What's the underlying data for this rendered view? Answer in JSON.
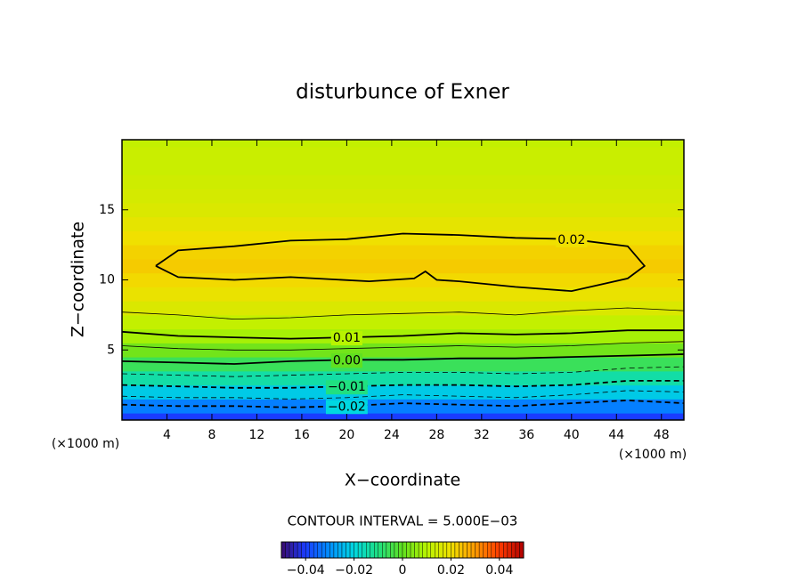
{
  "chart_data": {
    "type": "contour",
    "title": "disturbunce of Exner",
    "xlabel": "X−coordinate",
    "ylabel": "Z−coordinate",
    "y_unit": "(×1000 m)",
    "x_unit": "(×1000 m)",
    "xlim": [
      0,
      50
    ],
    "ylim": [
      0,
      20
    ],
    "xticks": [
      4,
      8,
      12,
      16,
      20,
      24,
      28,
      32,
      36,
      40,
      44,
      48
    ],
    "yticks": [
      5,
      10,
      15
    ],
    "field": {
      "z": [
        0,
        1,
        2,
        3,
        4,
        5,
        6,
        7,
        8,
        9,
        10,
        11,
        12,
        13,
        14,
        15,
        16,
        17,
        18,
        19,
        20
      ],
      "values": [
        -0.04,
        -0.032,
        -0.022,
        -0.014,
        -0.006,
        0.002,
        0.008,
        0.012,
        0.016,
        0.019,
        0.021,
        0.023,
        0.022,
        0.02,
        0.018,
        0.016,
        0.015,
        0.014,
        0.013,
        0.013,
        0.012
      ]
    },
    "contours": [
      {
        "level": 0.02,
        "label": "0.02",
        "x": [
          3,
          5,
          10,
          15,
          20,
          25,
          30,
          35,
          40,
          45,
          46.5,
          45,
          40,
          35,
          30,
          28,
          27,
          26,
          22,
          15,
          10,
          5,
          3
        ],
        "y": [
          11,
          12.1,
          12.4,
          12.8,
          12.9,
          13.3,
          13.2,
          13.0,
          12.9,
          12.4,
          11,
          10.1,
          9.2,
          9.5,
          9.9,
          10.0,
          10.6,
          10.1,
          9.9,
          10.2,
          10.0,
          10.2,
          11
        ]
      },
      {
        "level": 0.015,
        "x": [
          0,
          5,
          10,
          15,
          20,
          25,
          30,
          35,
          40,
          45,
          50
        ],
        "y": [
          7.7,
          7.5,
          7.2,
          7.3,
          7.5,
          7.6,
          7.7,
          7.5,
          7.8,
          8.0,
          7.8
        ]
      },
      {
        "level": 0.01,
        "label": "0.01",
        "x": [
          0,
          5,
          10,
          15,
          20,
          25,
          30,
          35,
          40,
          45,
          50
        ],
        "y": [
          6.3,
          6.0,
          5.9,
          5.8,
          5.9,
          6.0,
          6.2,
          6.1,
          6.2,
          6.4,
          6.4
        ]
      },
      {
        "level": 0.005,
        "x": [
          0,
          5,
          10,
          15,
          20,
          25,
          30,
          35,
          40,
          45,
          50
        ],
        "y": [
          5.3,
          5.1,
          5.0,
          5.0,
          5.1,
          5.2,
          5.3,
          5.2,
          5.3,
          5.5,
          5.6
        ]
      },
      {
        "level": 0,
        "label": "0.00",
        "x": [
          0,
          5,
          10,
          15,
          20,
          25,
          30,
          35,
          40,
          45,
          50
        ],
        "y": [
          4.2,
          4.1,
          4.0,
          4.2,
          4.3,
          4.3,
          4.4,
          4.4,
          4.5,
          4.6,
          4.7
        ]
      },
      {
        "level": -0.005,
        "x": [
          0,
          5,
          10,
          15,
          20,
          25,
          30,
          35,
          40,
          45,
          50
        ],
        "y": [
          3.3,
          3.2,
          3.1,
          3.2,
          3.3,
          3.4,
          3.4,
          3.3,
          3.4,
          3.7,
          3.8
        ]
      },
      {
        "level": -0.01,
        "label": "−0.01",
        "x": [
          0,
          5,
          10,
          15,
          20,
          25,
          30,
          35,
          40,
          45,
          50
        ],
        "y": [
          2.5,
          2.4,
          2.3,
          2.3,
          2.4,
          2.5,
          2.5,
          2.4,
          2.5,
          2.8,
          2.8
        ]
      },
      {
        "level": -0.015,
        "x": [
          0,
          5,
          10,
          15,
          20,
          25,
          30,
          35,
          40,
          45,
          50
        ],
        "y": [
          1.7,
          1.6,
          1.6,
          1.5,
          1.6,
          1.8,
          1.7,
          1.6,
          1.8,
          2.1,
          2.0
        ]
      },
      {
        "level": -0.02,
        "label": "−0.02",
        "x": [
          0,
          5,
          10,
          15,
          20,
          25,
          30,
          35,
          40,
          45,
          50
        ],
        "y": [
          1.1,
          1.0,
          1.0,
          0.9,
          1.0,
          1.2,
          1.1,
          1.0,
          1.2,
          1.4,
          1.2
        ]
      }
    ],
    "colorbar": {
      "title": "CONTOUR INTERVAL = 5.000E−03",
      "lim": [
        -0.05,
        0.05
      ],
      "ticks": [
        {
          "value": -0.04,
          "label": "−0.04"
        },
        {
          "value": -0.02,
          "label": "−0.02"
        },
        0,
        0.02,
        0.04
      ],
      "colormap": [
        "#3a0a6e",
        "#1a3cff",
        "#0090ff",
        "#00d8e0",
        "#20e080",
        "#60e020",
        "#b8f400",
        "#f0e000",
        "#ff9a00",
        "#ff3a00",
        "#b00000"
      ]
    }
  }
}
